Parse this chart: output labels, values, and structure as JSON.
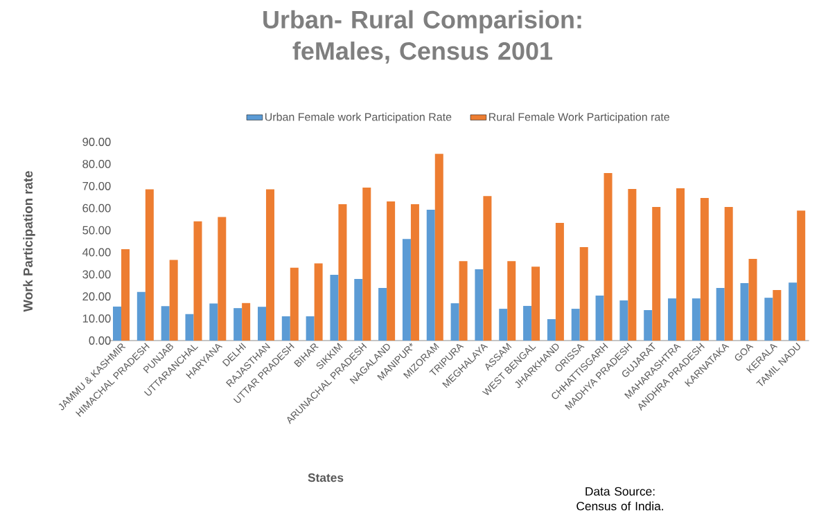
{
  "chart_data": {
    "type": "bar",
    "title": "Urban- Rural Comparision: feMales, Census 2001",
    "xlabel": "States",
    "ylabel": "Work Participation rate",
    "categories": [
      "JAMMU & KASHMIR",
      "HIMACHAL PRADESH",
      "PUNJAB",
      "UTTARANCHAL",
      "HARYANA",
      "DELHI",
      "RAJASTHAN",
      "UTTAR PRADESH",
      "BIHAR",
      "SIKKIM",
      "ARUNACHAL PRADESH",
      "NAGALAND",
      "MANIPUR*",
      "MIZORAM",
      "TRIPURA",
      "MEGHALAYA",
      "ASSAM",
      "WEST BENGAL",
      "JHARKHAND",
      "ORISSA",
      "CHHATTISGARH",
      "MADHYA PRADESH",
      "GUJARAT",
      "MAHARASHTRA",
      "ANDHRA PRADESH",
      "KARNATAKA",
      "GOA",
      "KERALA",
      "TAMIL NADU"
    ],
    "series": [
      {
        "name": "Urban Female work Participation Rate",
        "color": "#5b9bd5",
        "values": [
          15.4,
          22,
          15.6,
          12,
          16.8,
          14.7,
          15.3,
          11,
          11,
          29.8,
          27.9,
          23.8,
          46,
          59.3,
          16.9,
          32.3,
          14.4,
          15.7,
          9.7,
          14.4,
          20.4,
          18.2,
          13.8,
          19.1,
          19.1,
          23.8,
          26,
          19.4,
          26.3
        ]
      },
      {
        "name": "Rural Female Work Participation rate",
        "color": "#ed7d31",
        "values": [
          41.4,
          68.5,
          36.5,
          54,
          56,
          17,
          68.5,
          33,
          35,
          61.8,
          69.3,
          63,
          61.8,
          84.6,
          36,
          65.5,
          36,
          33.5,
          53.3,
          42.3,
          75.9,
          68.7,
          60.5,
          69,
          64.6,
          60.5,
          37,
          22.9,
          58.9
        ]
      }
    ],
    "ylim": [
      0,
      90
    ],
    "yticks": [
      {
        "value": 0,
        "label": "0.00"
      },
      {
        "value": 10,
        "label": "10.00"
      },
      {
        "value": 20,
        "label": "20.00"
      },
      {
        "value": 30,
        "label": "30.00"
      },
      {
        "value": 40,
        "label": "40.00"
      },
      {
        "value": 50,
        "label": "50.00"
      },
      {
        "value": 60,
        "label": "60.00"
      },
      {
        "value": 70,
        "label": "70.00"
      },
      {
        "value": 80,
        "label": "80.00"
      },
      {
        "value": 90,
        "label": "90.00"
      }
    ],
    "legend": "top",
    "annotations": [
      "Data Source: Census of India."
    ]
  }
}
